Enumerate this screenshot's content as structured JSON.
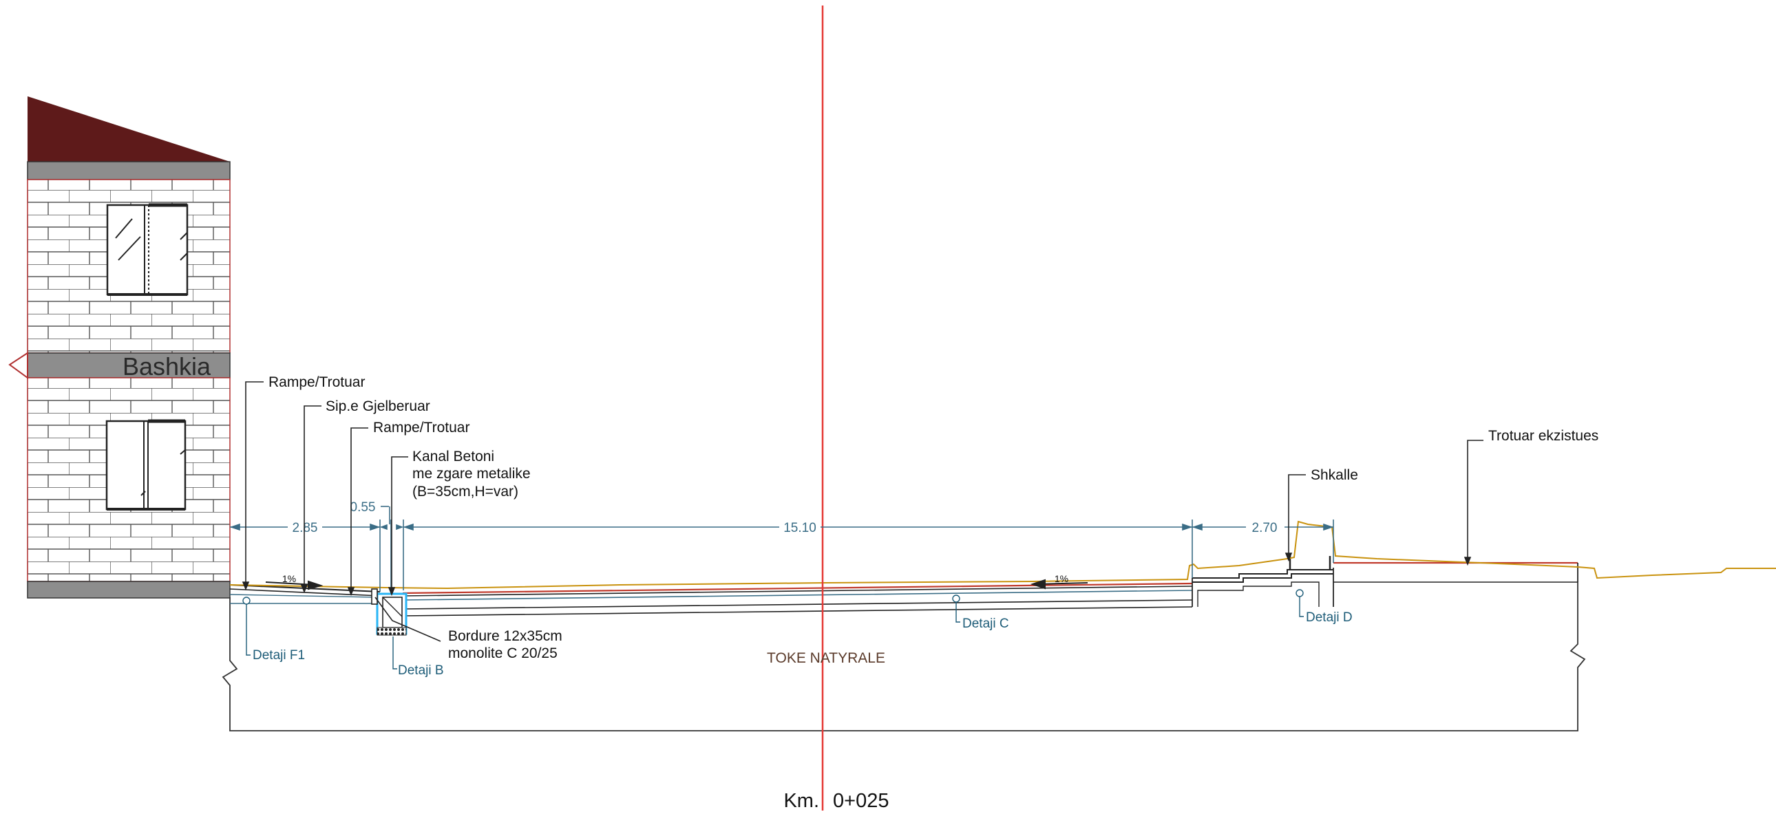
{
  "building": {
    "name": "Bashkia"
  },
  "labels": {
    "rampe_trotuar_1": "Rampe/Trotuar",
    "sip_gjelberuar": "Sip.e Gjelberuar",
    "rampe_trotuar_2": "Rampe/Trotuar",
    "kanal_line1": "Kanal Betoni",
    "kanal_line2": "me zgare metalike",
    "kanal_line3": "(B=35cm,H=var)",
    "shkalle": "Shkalle",
    "trotuar_ekzistues": "Trotuar ekzistues",
    "bordure_line1": "Bordure 12x35cm",
    "bordure_line2": "monolite C 20/25",
    "toke_natyrale": "TOKE NATYRALE"
  },
  "details": {
    "f1": "Detaji F1",
    "b": "Detaji B",
    "c": "Detaji C",
    "d": "Detaji D"
  },
  "dimensions": {
    "d1": "2.85",
    "d2": "0.55",
    "d3": "15.10",
    "d4": "2.70"
  },
  "slopes": {
    "left": "1%",
    "right": "1%"
  },
  "station": {
    "prefix": "Km.",
    "value": "0+025"
  },
  "colors": {
    "axis": "#e53935",
    "terrain": "#c9920e",
    "dimension": "#3a6d86",
    "detail": "#1d5c78",
    "roof": "#5e1a1a",
    "slab": "#8d8d8d",
    "brick": "#b03030",
    "drain": "#29b6f6"
  }
}
